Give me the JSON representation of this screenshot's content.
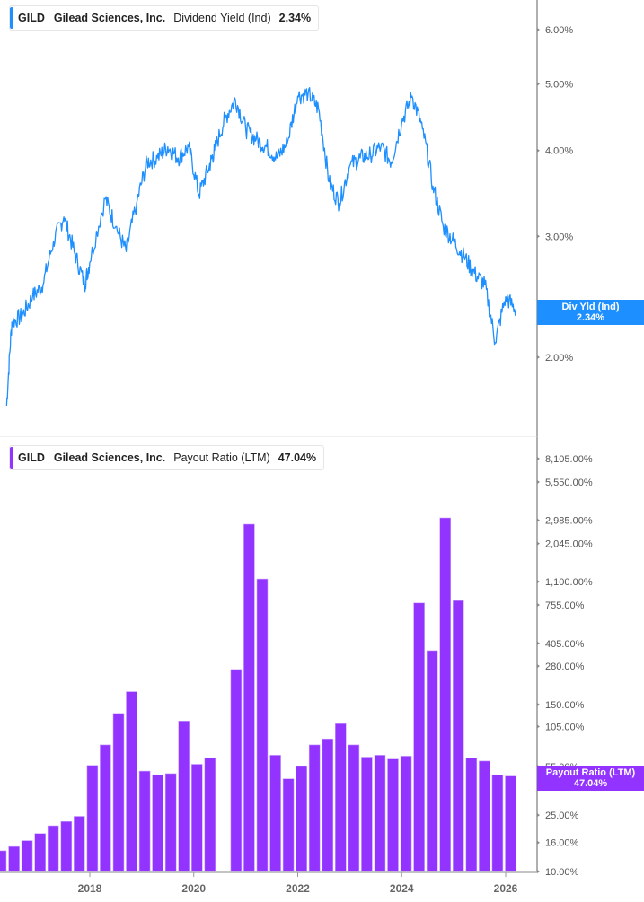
{
  "top_panel": {
    "legend": {
      "ticker": "GILD",
      "company": "Gilead Sciences, Inc.",
      "metric": "Dividend Yield (Ind)",
      "value": "2.34%",
      "color": "#1e8fff"
    },
    "y_ticks": [
      "6.00%",
      "5.00%",
      "4.00%",
      "3.00%",
      "2.00%"
    ],
    "tag": {
      "label": "Div Yld (Ind)",
      "value": "2.34%",
      "color": "#1e8fff"
    }
  },
  "bottom_panel": {
    "legend": {
      "ticker": "GILD",
      "company": "Gilead Sciences, Inc.",
      "metric": "Payout Ratio (LTM)",
      "value": "47.04%",
      "color": "#9333ff"
    },
    "y_ticks": [
      "8,105.00%",
      "5,550.00%",
      "2,985.00%",
      "2,045.00%",
      "1,100.00%",
      "755.00%",
      "405.00%",
      "280.00%",
      "150.00%",
      "105.00%",
      "55.00%",
      "45.00%",
      "25.00%",
      "16.00%",
      "10.00%"
    ],
    "tag": {
      "label": "Payout Ratio (LTM)",
      "value": "47.04%",
      "color": "#9333ff"
    }
  },
  "x_axis": {
    "labels": [
      "2018",
      "2020",
      "2022",
      "2024",
      "2026"
    ]
  },
  "chart_data": [
    {
      "type": "line",
      "title": "GILD Gilead Sciences, Inc. Dividend Yield (Ind) 2.34%",
      "xlabel": "",
      "ylabel": "Dividend Yield (Ind)",
      "scale": "log",
      "ylim": [
        1.6,
        6.5
      ],
      "y_ticks": [
        2.0,
        3.0,
        4.0,
        5.0,
        6.0
      ],
      "x": [
        2016.4,
        2016.5,
        2016.7,
        2016.9,
        2017.1,
        2017.3,
        2017.5,
        2017.7,
        2017.9,
        2018.0,
        2018.3,
        2018.5,
        2018.7,
        2018.9,
        2019.1,
        2019.3,
        2019.5,
        2019.7,
        2019.9,
        2020.1,
        2020.3,
        2020.4,
        2020.6,
        2020.8,
        2021.0,
        2021.2,
        2021.4,
        2021.6,
        2021.8,
        2022.0,
        2022.2,
        2022.4,
        2022.6,
        2022.8,
        2023.0,
        2023.2,
        2023.4,
        2023.6,
        2023.8,
        2024.0,
        2024.2,
        2024.4,
        2024.6,
        2024.8,
        2025.0,
        2025.2,
        2025.4,
        2025.6,
        2025.8,
        2026.0,
        2026.2
      ],
      "values": [
        1.7,
        2.25,
        2.3,
        2.45,
        2.55,
        2.95,
        3.2,
        2.85,
        2.55,
        2.75,
        3.4,
        3.1,
        2.85,
        3.35,
        3.85,
        3.9,
        4.05,
        3.9,
        4.05,
        3.45,
        3.8,
        4.0,
        4.45,
        4.75,
        4.3,
        4.15,
        4.05,
        3.9,
        4.1,
        4.8,
        4.85,
        4.6,
        3.6,
        3.35,
        3.8,
        3.9,
        3.95,
        4.05,
        3.85,
        4.4,
        4.8,
        4.3,
        3.55,
        3.1,
        2.95,
        2.8,
        2.65,
        2.55,
        2.1,
        2.45,
        2.34
      ],
      "last_value": 2.34
    },
    {
      "type": "bar",
      "title": "GILD Gilead Sciences, Inc. Payout Ratio (LTM) 47.04%",
      "xlabel": "",
      "ylabel": "Payout Ratio (LTM)",
      "scale": "log",
      "ylim": [
        10,
        9000
      ],
      "y_ticks": [
        10,
        16,
        25,
        45,
        55,
        105,
        150,
        280,
        405,
        755,
        1100,
        2045,
        2985,
        5550,
        8105
      ],
      "categories": [
        "2016Q2",
        "2016Q3",
        "2016Q4",
        "2017Q1",
        "2017Q2",
        "2017Q3",
        "2017Q4",
        "2018Q1",
        "2018Q2",
        "2018Q3",
        "2018Q4",
        "2019Q1",
        "2019Q2",
        "2019Q3",
        "2019Q4",
        "2020Q1",
        "2020Q2",
        "2020Q3",
        "2020Q4",
        "2021Q1",
        "2021Q2",
        "2021Q3",
        "2021Q4",
        "2022Q1",
        "2022Q2",
        "2022Q3",
        "2022Q4",
        "2023Q1",
        "2023Q2",
        "2023Q3",
        "2023Q4",
        "2024Q1",
        "2024Q2",
        "2024Q3",
        "2024Q4",
        "2025Q1",
        "2025Q2",
        "2025Q3",
        "2025Q4",
        "2026Q1"
      ],
      "values": [
        14,
        15,
        16.5,
        18.5,
        21,
        22.5,
        24.5,
        56,
        78,
        130,
        185,
        51,
        48,
        49,
        115,
        57,
        63,
        null,
        265,
        2800,
        1150,
        66,
        45,
        55,
        78,
        86,
        110,
        78,
        64,
        66,
        62,
        65,
        780,
        360,
        3100,
        810,
        63,
        60,
        48,
        47.04
      ],
      "last_value": 47.04
    }
  ]
}
